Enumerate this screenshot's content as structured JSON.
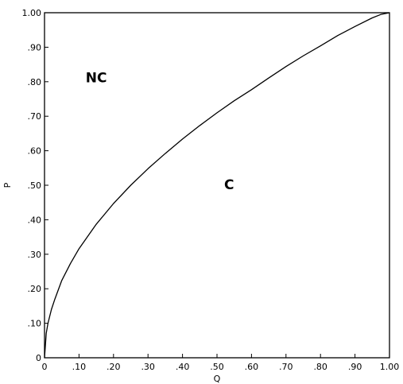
{
  "chart_data": {
    "type": "line",
    "title": "",
    "xlabel": "Q",
    "ylabel": "P",
    "xlim": [
      0,
      1
    ],
    "ylim": [
      0,
      1
    ],
    "grid": false,
    "x_ticks": [
      "0",
      ".10",
      ".20",
      ".30",
      ".40",
      ".50",
      ".60",
      ".70",
      ".80",
      ".90",
      "1.00"
    ],
    "y_ticks": [
      "0",
      ".10",
      ".20",
      ".30",
      ".40",
      ".50",
      ".60",
      ".70",
      ".80",
      ".90",
      "1.00"
    ],
    "series": [
      {
        "x": [
          0,
          0.005,
          0.01,
          0.02,
          0.03,
          0.05,
          0.075,
          0.1,
          0.15,
          0.2,
          0.25,
          0.3,
          0.35,
          0.4,
          0.45,
          0.5,
          0.55,
          0.6,
          0.65,
          0.7,
          0.75,
          0.8,
          0.85,
          0.9,
          0.95,
          0.975,
          1.0
        ],
        "values": [
          0,
          0.071,
          0.1,
          0.14,
          0.17,
          0.224,
          0.273,
          0.316,
          0.387,
          0.447,
          0.5,
          0.548,
          0.592,
          0.634,
          0.673,
          0.71,
          0.745,
          0.777,
          0.811,
          0.844,
          0.875,
          0.904,
          0.934,
          0.96,
          0.985,
          0.995,
          1.0
        ]
      }
    ],
    "annotations": [
      {
        "text": "NC",
        "x": 0.15,
        "y": 0.81
      },
      {
        "text": "C",
        "x": 0.535,
        "y": 0.5
      }
    ],
    "line_color": "#000000"
  }
}
